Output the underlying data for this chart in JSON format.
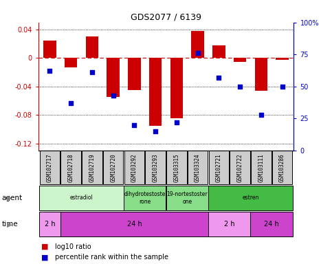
{
  "title": "GDS2077 / 6139",
  "samples": [
    "GSM102717",
    "GSM102718",
    "GSM102719",
    "GSM102720",
    "GSM103292",
    "GSM103293",
    "GSM103315",
    "GSM103324",
    "GSM102721",
    "GSM102722",
    "GSM103111",
    "GSM103286"
  ],
  "log10_ratio": [
    0.025,
    -0.013,
    0.03,
    -0.055,
    -0.045,
    -0.095,
    -0.085,
    0.038,
    0.018,
    -0.005,
    -0.046,
    -0.003
  ],
  "percentile_rank": [
    62,
    37,
    61,
    43,
    20,
    15,
    22,
    76,
    57,
    50,
    28,
    50
  ],
  "ylim_left": [
    -0.13,
    0.05
  ],
  "ylim_right": [
    0,
    100
  ],
  "yticks_left": [
    -0.12,
    -0.08,
    -0.04,
    0,
    0.04
  ],
  "yticks_right": [
    0,
    25,
    50,
    75,
    100
  ],
  "bar_color": "#cc0000",
  "scatter_color": "#0000cc",
  "zero_line_color": "#cc0000",
  "agent_groups": [
    {
      "label": "estradiol",
      "start": 0,
      "end": 4,
      "color": "#ccf5cc"
    },
    {
      "label": "dihydrotestoste\nrone",
      "start": 4,
      "end": 6,
      "color": "#88dd88"
    },
    {
      "label": "19-nortestoster\none",
      "start": 6,
      "end": 8,
      "color": "#88dd88"
    },
    {
      "label": "estren",
      "start": 8,
      "end": 12,
      "color": "#44bb44"
    }
  ],
  "time_groups": [
    {
      "label": "2 h",
      "start": 0,
      "end": 1,
      "color": "#ee99ee"
    },
    {
      "label": "24 h",
      "start": 1,
      "end": 8,
      "color": "#cc44cc"
    },
    {
      "label": "2 h",
      "start": 8,
      "end": 10,
      "color": "#ee99ee"
    },
    {
      "label": "24 h",
      "start": 10,
      "end": 12,
      "color": "#cc44cc"
    }
  ],
  "legend_bar_label": "log10 ratio",
  "legend_scatter_label": "percentile rank within the sample",
  "agent_label": "agent",
  "time_label": "time",
  "sample_box_color": "#cccccc",
  "background_color": "#ffffff"
}
